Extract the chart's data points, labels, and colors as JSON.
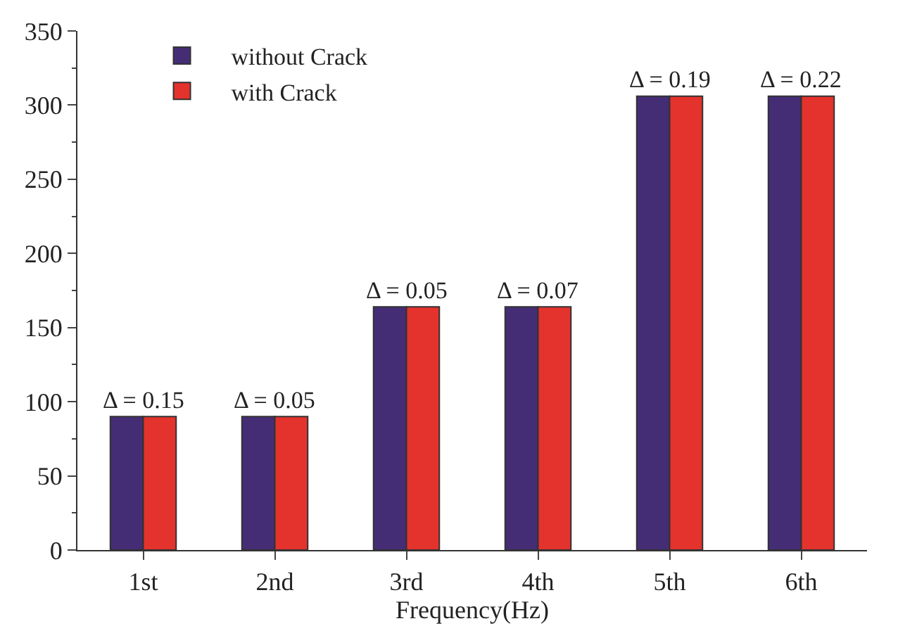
{
  "chart_data": {
    "type": "bar",
    "xlabel": "Frequency(Hz)",
    "categories": [
      "1st",
      "2nd",
      "3rd",
      "4th",
      "5th",
      "6th"
    ],
    "series": [
      {
        "name": "without Crack",
        "color": "#452d76",
        "values": [
          90,
          90,
          164,
          164,
          306,
          306
        ]
      },
      {
        "name": "with Crack",
        "color": "#e4322d",
        "values": [
          90,
          90,
          164,
          164,
          306,
          306
        ]
      }
    ],
    "ylim": [
      0,
      350
    ],
    "yticks": [
      0,
      50,
      100,
      150,
      200,
      250,
      300,
      350
    ],
    "legend": "top left",
    "annotations": [
      {
        "text": "Δ = 0.15",
        "x": "1st",
        "y": 90
      },
      {
        "text": "Δ = 0.05",
        "x": "2nd",
        "y": 90
      },
      {
        "text": "Δ = 0.05",
        "x": "3rd",
        "y": 164
      },
      {
        "text": "Δ = 0.07",
        "x": "4th",
        "y": 164
      },
      {
        "text": "Δ = 0.19",
        "x": "5th",
        "y": 306
      },
      {
        "text": "Δ = 0.22",
        "x": "6th",
        "y": 306
      }
    ]
  }
}
